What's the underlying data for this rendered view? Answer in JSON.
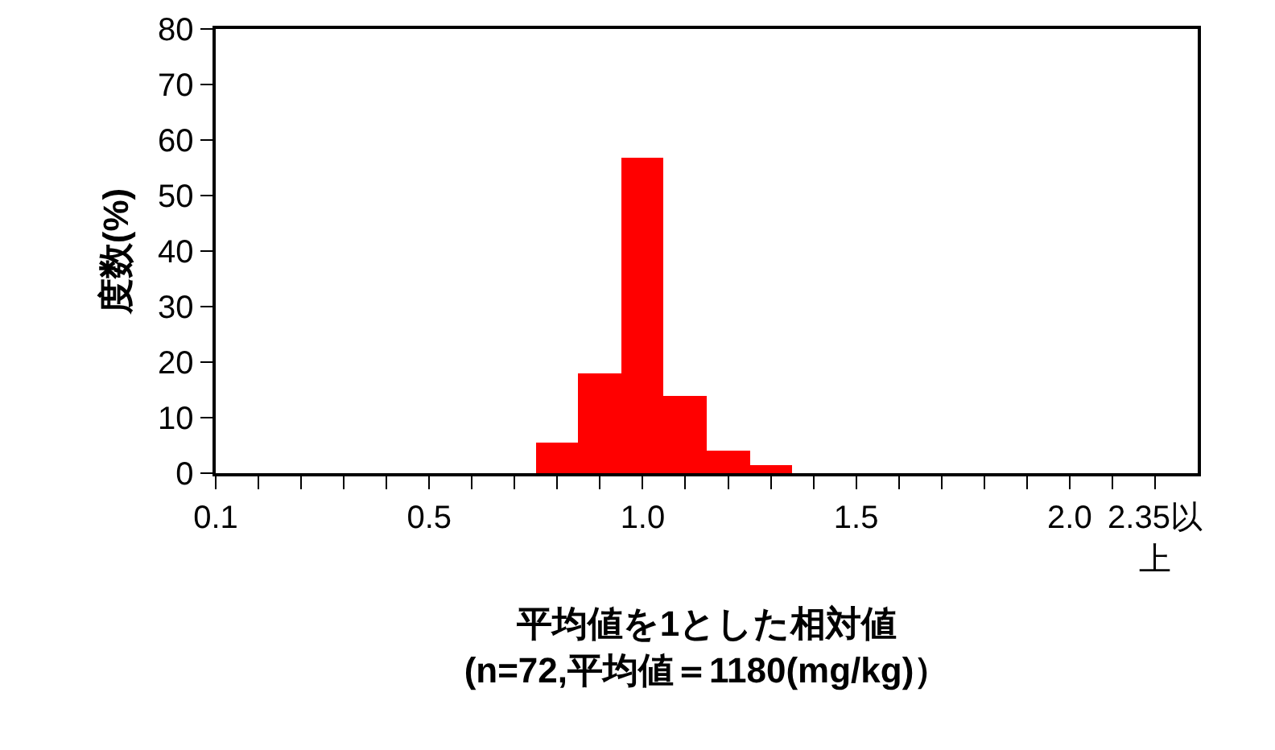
{
  "chart_data": {
    "type": "bar",
    "categories": [
      "0.1",
      null,
      null,
      null,
      null,
      "0.5",
      null,
      null,
      null,
      null,
      "1.0",
      null,
      null,
      null,
      null,
      "1.5",
      null,
      null,
      null,
      null,
      "2.0",
      null,
      "2.35以上"
    ],
    "values": [
      0,
      0,
      0,
      0,
      0,
      0,
      0,
      0,
      5.6,
      18.1,
      56.9,
      13.9,
      4.2,
      1.4,
      0,
      0,
      0,
      0,
      0,
      0,
      0,
      0,
      0
    ],
    "color": "#ff0000",
    "ylim": [
      0,
      80
    ],
    "yticks": [
      0,
      10,
      20,
      30,
      40,
      50,
      60,
      70,
      80
    ],
    "xlabel": "平均値を1とした相対値\n(n=72,平均値＝1180(mg/kg)）",
    "ylabel": "度数(%)"
  }
}
